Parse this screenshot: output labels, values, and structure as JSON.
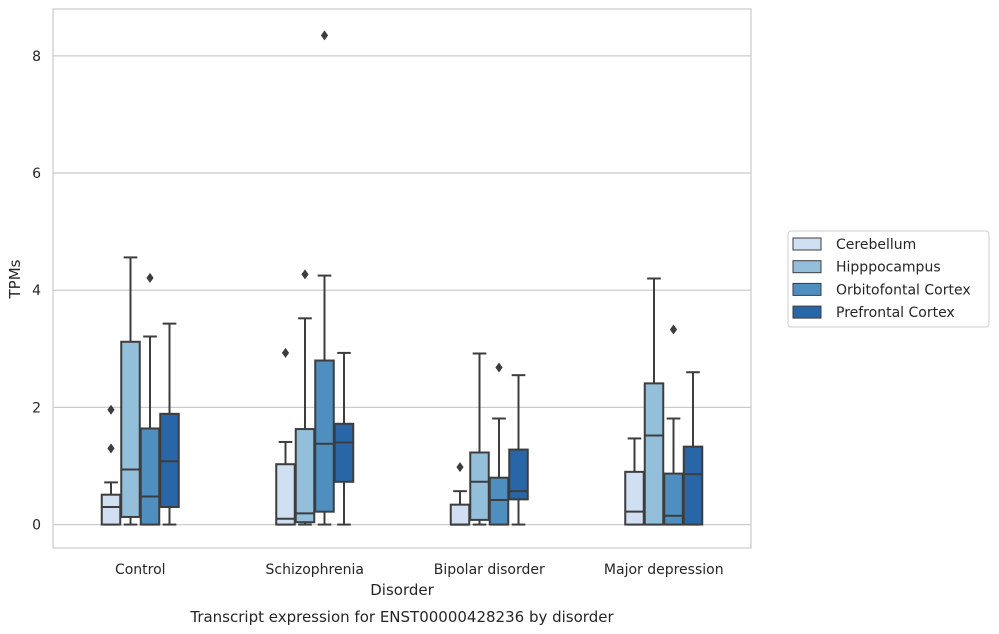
{
  "chart_data": {
    "type": "boxplot",
    "caption": "Transcript expression for ENST00000428236 by disorder",
    "xlabel": "Disorder",
    "ylabel": "TPMs",
    "ylim": [
      -0.4,
      8.8
    ],
    "yticks": [
      0,
      2,
      4,
      6,
      8
    ],
    "grid": "horizontal",
    "legend_position": "right",
    "categories": [
      "Control",
      "Schizophrenia",
      "Bipolar disorder",
      "Major depression"
    ],
    "series": [
      {
        "name": "Cerebellum",
        "color": "#d0e0f2",
        "boxes": [
          {
            "whisker_low": 0,
            "q1": 0,
            "median": 0.3,
            "q3": 0.51,
            "whisker_high": 0.72,
            "outliers": [
              1.3,
              1.96
            ]
          },
          {
            "whisker_low": 0,
            "q1": 0,
            "median": 0.1,
            "q3": 1.03,
            "whisker_high": 1.41,
            "outliers": [
              2.93
            ]
          },
          {
            "whisker_low": 0,
            "q1": 0,
            "median": 0,
            "q3": 0.34,
            "whisker_high": 0.57,
            "outliers": [
              0.98
            ]
          },
          {
            "whisker_low": 0,
            "q1": 0,
            "median": 0.22,
            "q3": 0.9,
            "whisker_high": 1.47,
            "outliers": []
          }
        ]
      },
      {
        "name": "Hipppocampus",
        "color": "#94bfda",
        "boxes": [
          {
            "whisker_low": 0,
            "q1": 0.13,
            "median": 0.94,
            "q3": 3.12,
            "whisker_high": 4.56,
            "outliers": []
          },
          {
            "whisker_low": 0,
            "q1": 0.04,
            "median": 0.19,
            "q3": 1.63,
            "whisker_high": 3.52,
            "outliers": [
              4.27
            ]
          },
          {
            "whisker_low": 0,
            "q1": 0.08,
            "median": 0.73,
            "q3": 1.23,
            "whisker_high": 2.92,
            "outliers": []
          },
          {
            "whisker_low": 0,
            "q1": 0,
            "median": 1.52,
            "q3": 2.41,
            "whisker_high": 4.2,
            "outliers": []
          }
        ]
      },
      {
        "name": "Orbitofontal Cortex",
        "color": "#4e8fc0",
        "boxes": [
          {
            "whisker_low": 0,
            "q1": 0,
            "median": 0.48,
            "q3": 1.64,
            "whisker_high": 3.21,
            "outliers": [
              4.21
            ]
          },
          {
            "whisker_low": 0,
            "q1": 0.22,
            "median": 1.38,
            "q3": 2.8,
            "whisker_high": 4.25,
            "outliers": [
              8.35
            ]
          },
          {
            "whisker_low": 0,
            "q1": 0,
            "median": 0.42,
            "q3": 0.8,
            "whisker_high": 1.81,
            "outliers": [
              2.68
            ]
          },
          {
            "whisker_low": 0,
            "q1": 0,
            "median": 0.15,
            "q3": 0.87,
            "whisker_high": 1.81,
            "outliers": [
              3.33
            ]
          }
        ]
      },
      {
        "name": "Prefrontal Cortex",
        "color": "#2866a8",
        "boxes": [
          {
            "whisker_low": 0,
            "q1": 0.3,
            "median": 1.08,
            "q3": 1.89,
            "whisker_high": 3.43,
            "outliers": []
          },
          {
            "whisker_low": 0,
            "q1": 0.73,
            "median": 1.4,
            "q3": 1.72,
            "whisker_high": 2.93,
            "outliers": []
          },
          {
            "whisker_low": 0,
            "q1": 0.43,
            "median": 0.57,
            "q3": 1.28,
            "whisker_high": 2.55,
            "outliers": []
          },
          {
            "whisker_low": 0,
            "q1": 0,
            "median": 0.86,
            "q3": 1.33,
            "whisker_high": 2.6,
            "outliers": []
          }
        ]
      }
    ]
  }
}
